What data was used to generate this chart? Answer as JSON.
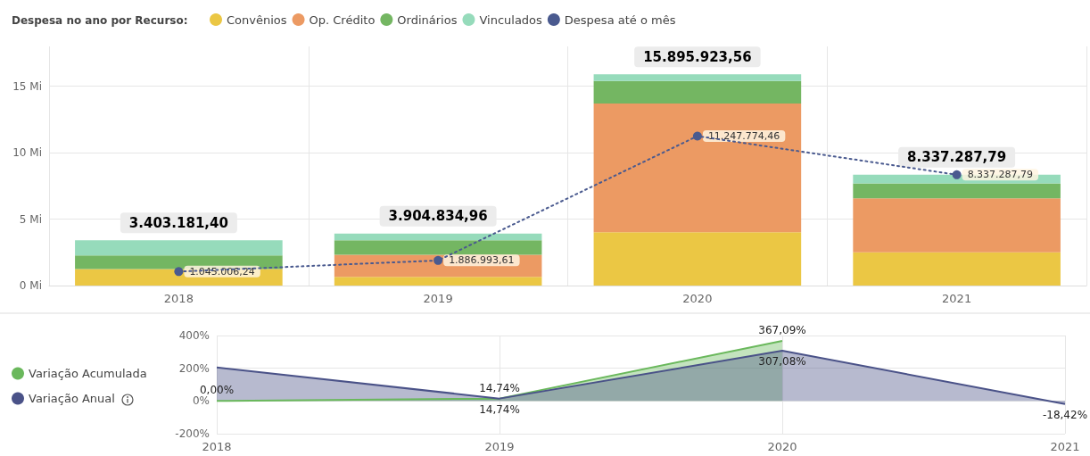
{
  "chart_data": [
    {
      "type": "bar",
      "stacked": true,
      "legend_title": "Despesa no ano por Recurso:",
      "legend": "top left",
      "grid": true,
      "categories": [
        "2018",
        "2019",
        "2020",
        "2021"
      ],
      "ylim": [
        0,
        18
      ],
      "yticks": [
        {
          "value": 0,
          "label": "0 Mi"
        },
        {
          "value": 5,
          "label": "5 Mi"
        },
        {
          "value": 10,
          "label": "10 Mi"
        },
        {
          "value": 15,
          "label": "15 Mi"
        }
      ],
      "series": [
        {
          "name": "Convênios",
          "color": "#ebc744",
          "values": [
            1.24,
            0.65,
            4.01,
            2.5
          ]
        },
        {
          "name": "Op. Crédito",
          "color": "#ec9a63",
          "values": [
            0,
            1.66,
            9.69,
            4.06
          ]
        },
        {
          "name": "Ordinários",
          "color": "#74b662",
          "values": [
            1.02,
            1.1,
            1.7,
            1.13
          ]
        },
        {
          "name": "Vinculados",
          "color": "#96dbbb",
          "values": [
            1.1431814,
            0.49483496,
            0.49592356,
            0.64728779
          ]
        },
        {
          "name": "Despesa até o mês",
          "type": "line",
          "color": "#4a5a8f",
          "line_style": "dotted",
          "marker": "circle",
          "values": [
            1.05,
            1.89,
            11.25,
            8.34
          ]
        }
      ],
      "annotations": [
        {
          "text": "1.045.006,24",
          "x": "2018",
          "y": 1.05
        },
        {
          "text": "1.886.993,61",
          "x": "2019",
          "y": 1.89
        },
        {
          "text": "11.247.774,46",
          "x": "2020",
          "y": 11.25
        },
        {
          "text": "8.337.287,79",
          "x": "2021",
          "y": 8.34
        }
      ],
      "totals": [
        "3.403.181,40",
        "3.904.834,96",
        "15.895.923,56",
        "8.337.287,79"
      ]
    },
    {
      "type": "area",
      "legend": "left",
      "grid": true,
      "marker": "none",
      "categories": [
        "2018",
        "2019",
        "2020",
        "2021"
      ],
      "ylim": [
        -200,
        400
      ],
      "yticks": [
        {
          "value": -200,
          "label": "-200%"
        },
        {
          "value": 0,
          "label": "0%"
        },
        {
          "value": 200,
          "label": "200%"
        },
        {
          "value": 400,
          "label": "400%"
        }
      ],
      "series": [
        {
          "name": "Variação Acumulada",
          "color": "#6ab85c",
          "values": [
            0,
            14.74,
            367.09,
            null
          ],
          "value_labels": [
            "0,00%",
            "14,74%",
            "367,09%",
            null
          ]
        },
        {
          "name": "Variação Anual",
          "color": "#4a5288",
          "values": [
            205,
            14.74,
            307.08,
            -18.42
          ],
          "value_labels": [
            null,
            "14,74%",
            "307,08%",
            "-18,42%"
          ]
        }
      ]
    }
  ]
}
